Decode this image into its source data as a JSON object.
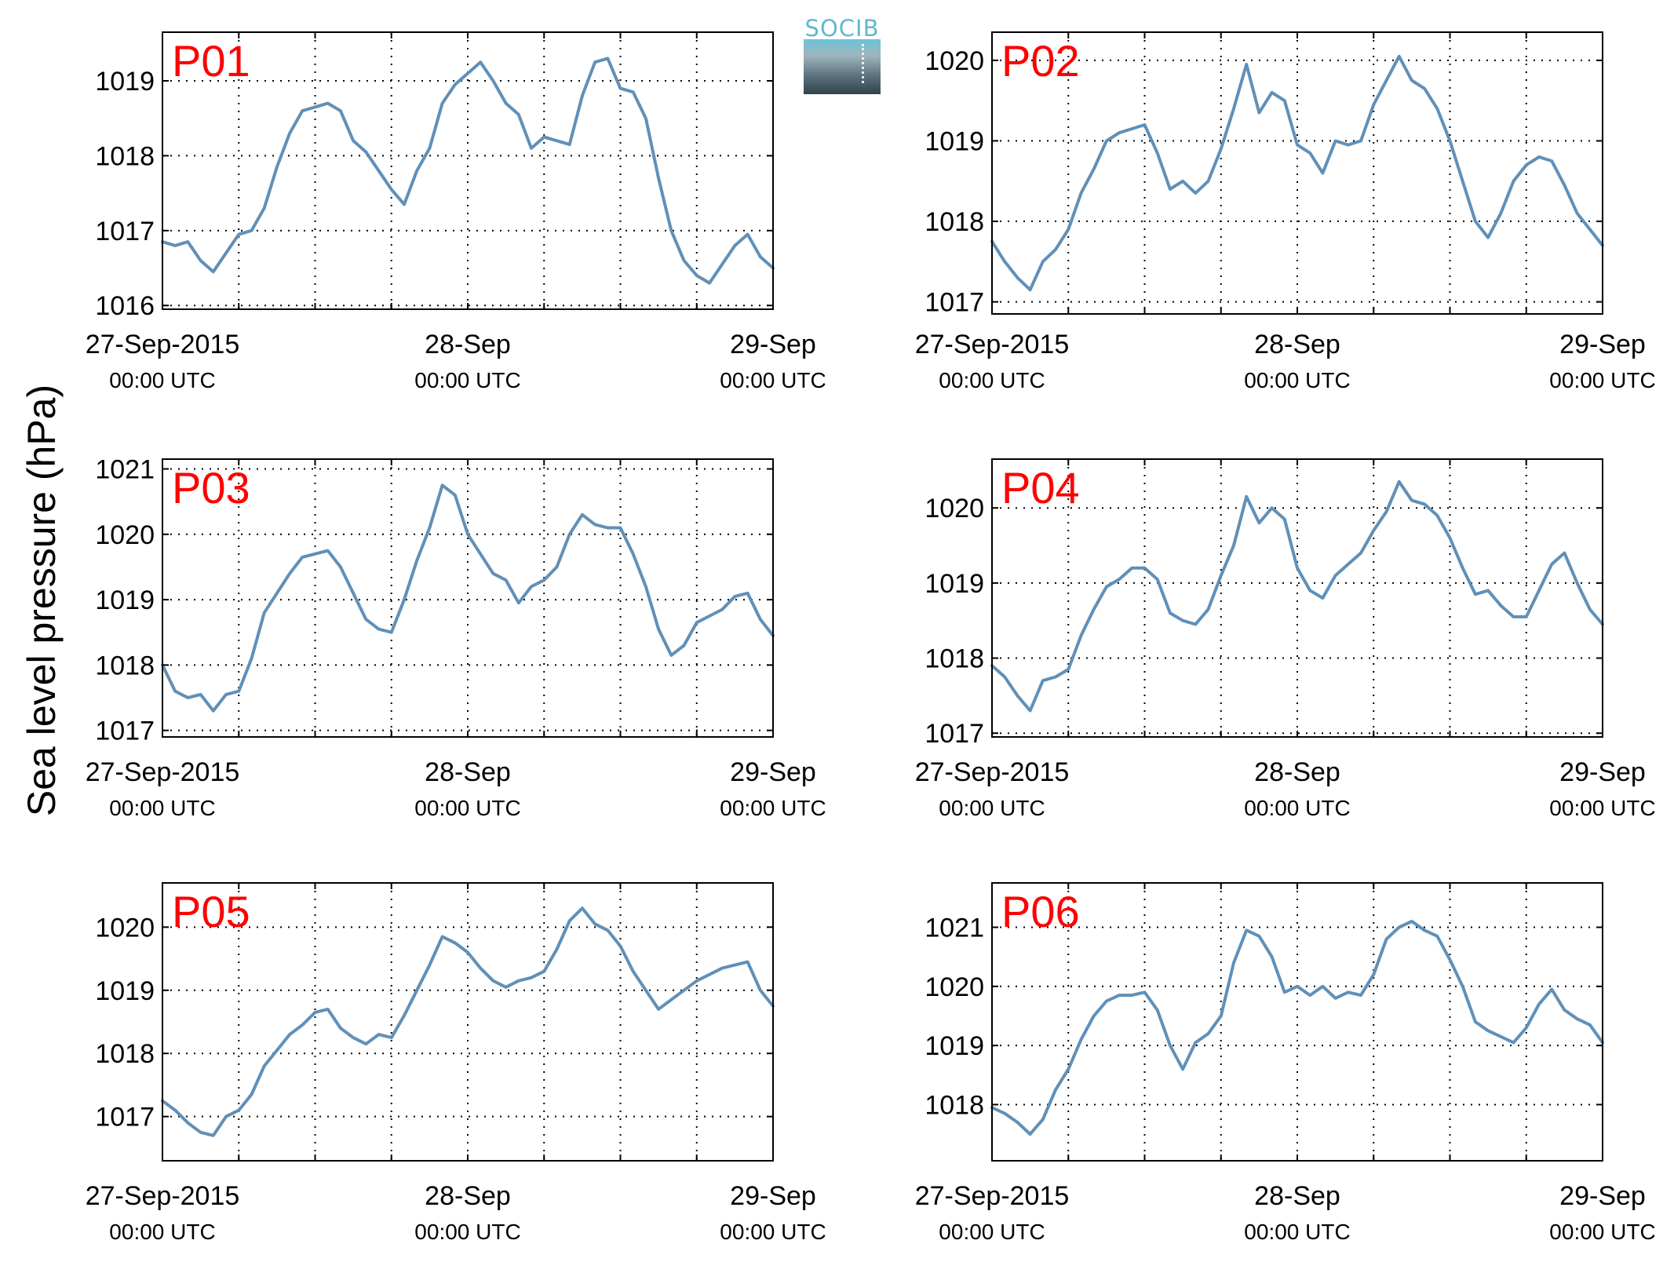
{
  "figure": {
    "ylabel": "Sea level pressure (hPa)",
    "logo_text": "SOCIB"
  },
  "colors": {
    "line": "#6090b8",
    "panel_label": "#ff0000",
    "axis": "#000000",
    "grid": "#000000"
  },
  "chart_data": [
    {
      "type": "line",
      "title": "P01",
      "x_start": "27-Sep-2015 00:00 UTC",
      "x_end": "29-Sep-2015 00:00 UTC",
      "xticks": [
        {
          "label": "27-Sep-2015",
          "sub": "00:00 UTC"
        },
        {
          "label": "28-Sep",
          "sub": "00:00 UTC"
        },
        {
          "label": "29-Sep",
          "sub": "00:00 UTC"
        }
      ],
      "ylim": [
        1015.95,
        1019.65
      ],
      "yticks": [
        1016,
        1017,
        1018,
        1019
      ],
      "x_hours": [
        0,
        1,
        2,
        3,
        4,
        5,
        6,
        7,
        8,
        9,
        10,
        11,
        12,
        13,
        14,
        15,
        16,
        17,
        18,
        19,
        20,
        21,
        22,
        23,
        24,
        25,
        26,
        27,
        28,
        29,
        30,
        31,
        32,
        33,
        34,
        35,
        36,
        37,
        38,
        39,
        40,
        41,
        42,
        43,
        44,
        45,
        46,
        47,
        48
      ],
      "y": [
        1016.85,
        1016.8,
        1016.85,
        1016.6,
        1016.45,
        1016.7,
        1016.95,
        1017.0,
        1017.3,
        1017.85,
        1018.3,
        1018.6,
        1018.65,
        1018.7,
        1018.6,
        1018.2,
        1018.05,
        1017.8,
        1017.55,
        1017.35,
        1017.8,
        1018.1,
        1018.7,
        1018.95,
        1019.1,
        1019.25,
        1019.0,
        1018.7,
        1018.55,
        1018.1,
        1018.25,
        1018.2,
        1018.15,
        1018.8,
        1019.25,
        1019.3,
        1018.9,
        1018.85,
        1018.5,
        1017.7,
        1017.0,
        1016.6,
        1016.4,
        1016.3,
        1016.55,
        1016.8,
        1016.95,
        1016.65,
        1016.5
      ]
    },
    {
      "type": "line",
      "title": "P02",
      "x_start": "27-Sep-2015 00:00 UTC",
      "x_end": "29-Sep-2015 00:00 UTC",
      "xticks": [
        {
          "label": "27-Sep-2015",
          "sub": "00:00 UTC"
        },
        {
          "label": "28-Sep",
          "sub": "00:00 UTC"
        },
        {
          "label": "29-Sep",
          "sub": "00:00 UTC"
        }
      ],
      "ylim": [
        1016.85,
        1020.35
      ],
      "yticks": [
        1017,
        1018,
        1019,
        1020
      ],
      "x_hours": [
        0,
        1,
        2,
        3,
        4,
        5,
        6,
        7,
        8,
        9,
        10,
        11,
        12,
        13,
        14,
        15,
        16,
        17,
        18,
        19,
        20,
        21,
        22,
        23,
        24,
        25,
        26,
        27,
        28,
        29,
        30,
        31,
        32,
        33,
        34,
        35,
        36,
        37,
        38,
        39,
        40,
        41,
        42,
        43,
        44,
        45,
        46,
        47,
        48
      ],
      "y": [
        1017.75,
        1017.5,
        1017.3,
        1017.15,
        1017.5,
        1017.65,
        1017.9,
        1018.35,
        1018.65,
        1019.0,
        1019.1,
        1019.15,
        1019.2,
        1018.85,
        1018.4,
        1018.5,
        1018.35,
        1018.5,
        1018.9,
        1019.4,
        1019.95,
        1019.35,
        1019.6,
        1019.5,
        1018.95,
        1018.85,
        1018.6,
        1019.0,
        1018.95,
        1019.0,
        1019.45,
        1019.75,
        1020.05,
        1019.75,
        1019.65,
        1019.4,
        1019.0,
        1018.5,
        1018.0,
        1017.8,
        1018.1,
        1018.5,
        1018.7,
        1018.8,
        1018.75,
        1018.45,
        1018.1,
        1017.9,
        1017.7
      ]
    },
    {
      "type": "line",
      "title": "P03",
      "x_start": "27-Sep-2015 00:00 UTC",
      "x_end": "29-Sep-2015 00:00 UTC",
      "xticks": [
        {
          "label": "27-Sep-2015",
          "sub": "00:00 UTC"
        },
        {
          "label": "28-Sep",
          "sub": "00:00 UTC"
        },
        {
          "label": "29-Sep",
          "sub": "00:00 UTC"
        }
      ],
      "ylim": [
        1016.9,
        1021.15
      ],
      "yticks": [
        1017,
        1018,
        1019,
        1020,
        1021
      ],
      "x_hours": [
        0,
        1,
        2,
        3,
        4,
        5,
        6,
        7,
        8,
        9,
        10,
        11,
        12,
        13,
        14,
        15,
        16,
        17,
        18,
        19,
        20,
        21,
        22,
        23,
        24,
        25,
        26,
        27,
        28,
        29,
        30,
        31,
        32,
        33,
        34,
        35,
        36,
        37,
        38,
        39,
        40,
        41,
        42,
        43,
        44,
        45,
        46,
        47,
        48
      ],
      "y": [
        1018.0,
        1017.6,
        1017.5,
        1017.55,
        1017.3,
        1017.55,
        1017.6,
        1018.1,
        1018.8,
        1019.1,
        1019.4,
        1019.65,
        1019.7,
        1019.75,
        1019.5,
        1019.1,
        1018.7,
        1018.55,
        1018.5,
        1019.0,
        1019.6,
        1020.1,
        1020.75,
        1020.6,
        1020.0,
        1019.7,
        1019.4,
        1019.3,
        1018.95,
        1019.2,
        1019.3,
        1019.5,
        1020.0,
        1020.3,
        1020.15,
        1020.1,
        1020.1,
        1019.7,
        1019.2,
        1018.55,
        1018.15,
        1018.3,
        1018.65,
        1018.75,
        1018.85,
        1019.05,
        1019.1,
        1018.7,
        1018.45
      ]
    },
    {
      "type": "line",
      "title": "P04",
      "x_start": "27-Sep-2015 00:00 UTC",
      "x_end": "29-Sep-2015 00:00 UTC",
      "xticks": [
        {
          "label": "27-Sep-2015",
          "sub": "00:00 UTC"
        },
        {
          "label": "28-Sep",
          "sub": "00:00 UTC"
        },
        {
          "label": "29-Sep",
          "sub": "00:00 UTC"
        }
      ],
      "ylim": [
        1016.95,
        1020.65
      ],
      "yticks": [
        1017,
        1018,
        1019,
        1020
      ],
      "x_hours": [
        0,
        1,
        2,
        3,
        4,
        5,
        6,
        7,
        8,
        9,
        10,
        11,
        12,
        13,
        14,
        15,
        16,
        17,
        18,
        19,
        20,
        21,
        22,
        23,
        24,
        25,
        26,
        27,
        28,
        29,
        30,
        31,
        32,
        33,
        34,
        35,
        36,
        37,
        38,
        39,
        40,
        41,
        42,
        43,
        44,
        45,
        46,
        47,
        48
      ],
      "y": [
        1017.9,
        1017.75,
        1017.5,
        1017.3,
        1017.7,
        1017.75,
        1017.85,
        1018.3,
        1018.65,
        1018.95,
        1019.05,
        1019.2,
        1019.2,
        1019.05,
        1018.6,
        1018.5,
        1018.45,
        1018.65,
        1019.1,
        1019.5,
        1020.15,
        1019.8,
        1020.0,
        1019.85,
        1019.2,
        1018.9,
        1018.8,
        1019.1,
        1019.25,
        1019.4,
        1019.7,
        1019.95,
        1020.35,
        1020.1,
        1020.05,
        1019.9,
        1019.6,
        1019.2,
        1018.85,
        1018.9,
        1018.7,
        1018.55,
        1018.55,
        1018.9,
        1019.25,
        1019.4,
        1019.0,
        1018.65,
        1018.45
      ]
    },
    {
      "type": "line",
      "title": "P05",
      "x_start": "27-Sep-2015 00:00 UTC",
      "x_end": "29-Sep-2015 00:00 UTC",
      "xticks": [
        {
          "label": "27-Sep-2015",
          "sub": "00:00 UTC"
        },
        {
          "label": "28-Sep",
          "sub": "00:00 UTC"
        },
        {
          "label": "29-Sep",
          "sub": "00:00 UTC"
        }
      ],
      "ylim": [
        1016.3,
        1020.7
      ],
      "yticks": [
        1017,
        1018,
        1019,
        1020
      ],
      "x_hours": [
        0,
        1,
        2,
        3,
        4,
        5,
        6,
        7,
        8,
        9,
        10,
        11,
        12,
        13,
        14,
        15,
        16,
        17,
        18,
        19,
        20,
        21,
        22,
        23,
        24,
        25,
        26,
        27,
        28,
        29,
        30,
        31,
        32,
        33,
        34,
        35,
        36,
        37,
        38,
        39,
        40,
        41,
        42,
        43,
        44,
        45,
        46,
        47,
        48
      ],
      "y": [
        1017.25,
        1017.1,
        1016.9,
        1016.75,
        1016.7,
        1017.0,
        1017.1,
        1017.35,
        1017.8,
        1018.05,
        1018.3,
        1018.45,
        1018.65,
        1018.7,
        1018.4,
        1018.25,
        1018.15,
        1018.3,
        1018.25,
        1018.6,
        1019.0,
        1019.4,
        1019.85,
        1019.75,
        1019.6,
        1019.35,
        1019.15,
        1019.05,
        1019.15,
        1019.2,
        1019.3,
        1019.65,
        1020.1,
        1020.3,
        1020.05,
        1019.95,
        1019.7,
        1019.3,
        1019.0,
        1018.7,
        1018.85,
        1019.0,
        1019.15,
        1019.25,
        1019.35,
        1019.4,
        1019.45,
        1019.0,
        1018.75
      ]
    },
    {
      "type": "line",
      "title": "P06",
      "x_start": "27-Sep-2015 00:00 UTC",
      "x_end": "29-Sep-2015 00:00 UTC",
      "xticks": [
        {
          "label": "27-Sep-2015",
          "sub": "00:00 UTC"
        },
        {
          "label": "28-Sep",
          "sub": "00:00 UTC"
        },
        {
          "label": "29-Sep",
          "sub": "00:00 UTC"
        }
      ],
      "ylim": [
        1017.05,
        1021.75
      ],
      "yticks": [
        1018,
        1019,
        1020,
        1021
      ],
      "x_hours": [
        0,
        1,
        2,
        3,
        4,
        5,
        6,
        7,
        8,
        9,
        10,
        11,
        12,
        13,
        14,
        15,
        16,
        17,
        18,
        19,
        20,
        21,
        22,
        23,
        24,
        25,
        26,
        27,
        28,
        29,
        30,
        31,
        32,
        33,
        34,
        35,
        36,
        37,
        38,
        39,
        40,
        41,
        42,
        43,
        44,
        45,
        46,
        47,
        48
      ],
      "y": [
        1017.95,
        1017.85,
        1017.7,
        1017.5,
        1017.75,
        1018.25,
        1018.6,
        1019.1,
        1019.5,
        1019.75,
        1019.85,
        1019.85,
        1019.9,
        1019.6,
        1019.0,
        1018.6,
        1019.05,
        1019.2,
        1019.5,
        1020.4,
        1020.95,
        1020.85,
        1020.5,
        1019.9,
        1020.0,
        1019.85,
        1020.0,
        1019.8,
        1019.9,
        1019.85,
        1020.2,
        1020.8,
        1021.0,
        1021.1,
        1020.95,
        1020.85,
        1020.45,
        1020.0,
        1019.4,
        1019.25,
        1019.15,
        1019.05,
        1019.3,
        1019.7,
        1019.95,
        1019.6,
        1019.45,
        1019.35,
        1019.05
      ]
    }
  ]
}
